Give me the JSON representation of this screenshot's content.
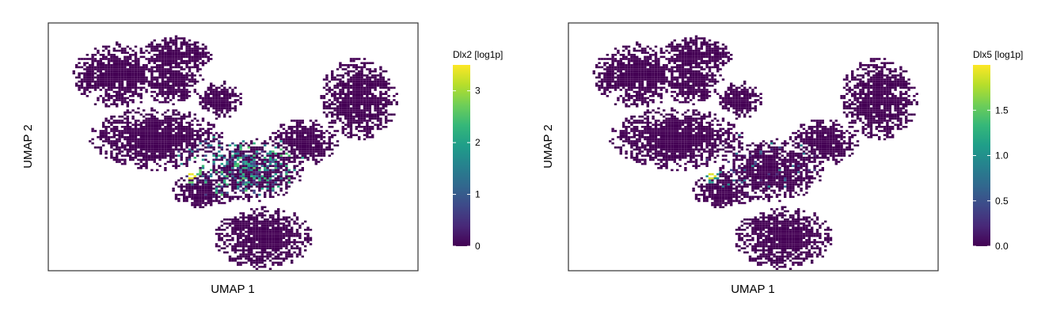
{
  "chart_data": [
    {
      "type": "heatmap",
      "title": "",
      "xlabel": "UMAP 1",
      "ylabel": "UMAP 2",
      "colorbar": {
        "title": "Dlx2 [log1p]",
        "range": [
          0,
          3.5
        ],
        "ticks": [
          0,
          1,
          2,
          3
        ],
        "tick_labels": [
          "0",
          "1",
          "2",
          "3"
        ]
      },
      "colormap": "viridis",
      "max_value": 3.5,
      "hotspot_value": 3.4,
      "secondary_hotspot_value": 2.6
    },
    {
      "type": "heatmap",
      "title": "",
      "xlabel": "UMAP 1",
      "ylabel": "UMAP 2",
      "colorbar": {
        "title": "Dlx5 [log1p]",
        "range": [
          0,
          2.0
        ],
        "ticks": [
          0.0,
          0.5,
          1.0,
          1.5
        ],
        "tick_labels": [
          "0.0",
          "0.5",
          "1.0",
          "1.5"
        ]
      },
      "colormap": "viridis",
      "max_value": 2.0,
      "hotspot_value": 1.9,
      "secondary_hotspot_value": 1.0
    }
  ],
  "colors": {
    "viridis": [
      "#440154",
      "#482878",
      "#3e4989",
      "#31688e",
      "#26828e",
      "#1f9e89",
      "#35b779",
      "#6ece58",
      "#b5de2b",
      "#fde725"
    ],
    "frame": "#333333",
    "background": "#ffffff"
  }
}
